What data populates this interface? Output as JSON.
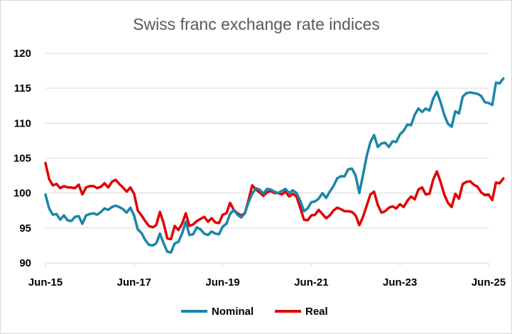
{
  "chart_data": {
    "type": "line",
    "title": "Swiss franc exchange rate indices",
    "xlabel": "",
    "ylabel": "",
    "ylim": [
      90,
      120
    ],
    "yticks": [
      "90",
      "95",
      "100",
      "105",
      "110",
      "115",
      "120"
    ],
    "xticks": [
      "Jun-15",
      "Jun-17",
      "Jun-19",
      "Jun-21",
      "Jun-23",
      "Jun-25"
    ],
    "x_start": "2015-06",
    "x_end": "2025-06",
    "grid": "horizontal",
    "legend": "bottom",
    "series": [
      {
        "name": "Nominal",
        "color": "#1a86a8",
        "values": [
          99.8,
          97.8,
          96.9,
          97.0,
          96.2,
          96.8,
          96.1,
          96.0,
          96.6,
          96.7,
          95.6,
          96.8,
          97.0,
          97.1,
          96.9,
          97.3,
          97.8,
          97.6,
          98.0,
          98.2,
          98.0,
          97.7,
          97.2,
          97.9,
          96.8,
          94.8,
          94.3,
          93.3,
          92.6,
          92.5,
          92.8,
          94.2,
          92.8,
          91.6,
          91.5,
          92.8,
          93.0,
          94.2,
          95.9,
          94.0,
          94.1,
          95.1,
          94.8,
          94.2,
          94.0,
          94.5,
          94.2,
          94.1,
          95.2,
          95.6,
          97.0,
          97.6,
          96.9,
          96.5,
          97.1,
          98.7,
          99.9,
          100.7,
          100.5,
          99.9,
          100.6,
          100.5,
          100.2,
          100.0,
          100.3,
          100.6,
          100.0,
          100.4,
          100.0,
          98.9,
          97.4,
          97.8,
          98.7,
          98.8,
          99.2,
          100.0,
          99.3,
          100.2,
          101.0,
          102.1,
          102.4,
          102.4,
          103.4,
          103.5,
          102.5,
          100.0,
          102.6,
          105.3,
          107.3,
          108.3,
          106.6,
          107.1,
          107.2,
          106.6,
          107.4,
          107.3,
          108.4,
          108.9,
          109.8,
          109.7,
          111.2,
          112.1,
          111.6,
          112.1,
          111.8,
          113.5,
          114.5,
          113.0,
          111.2,
          109.9,
          109.5,
          111.7,
          111.4,
          113.8,
          114.3,
          114.4,
          114.3,
          114.2,
          113.9,
          113.0,
          112.9,
          112.6,
          115.8,
          115.7,
          116.4
        ]
      },
      {
        "name": "Real",
        "color": "#e00000",
        "values": [
          104.3,
          102.0,
          101.1,
          101.3,
          100.7,
          101.0,
          100.8,
          100.8,
          100.7,
          101.2,
          99.8,
          100.8,
          101.0,
          101.0,
          100.7,
          100.9,
          101.4,
          100.8,
          101.6,
          101.9,
          101.3,
          100.8,
          100.2,
          100.8,
          99.9,
          97.5,
          96.8,
          96.0,
          95.3,
          95.1,
          95.4,
          97.3,
          95.7,
          93.5,
          93.4,
          95.3,
          94.7,
          95.6,
          97.1,
          95.3,
          95.5,
          96.0,
          96.3,
          96.6,
          95.9,
          96.4,
          95.8,
          95.7,
          96.9,
          97.1,
          98.6,
          97.6,
          97.1,
          96.8,
          97.1,
          99.0,
          101.1,
          100.5,
          100.1,
          99.6,
          100.1,
          100.3,
          100.0,
          100.0,
          99.8,
          100.2,
          99.5,
          99.9,
          99.5,
          97.9,
          96.2,
          96.1,
          96.8,
          96.9,
          97.6,
          97.0,
          96.4,
          96.8,
          97.5,
          97.9,
          97.7,
          97.4,
          97.4,
          97.3,
          96.8,
          95.4,
          96.6,
          98.2,
          99.8,
          100.2,
          98.3,
          97.2,
          97.4,
          97.9,
          98.1,
          97.8,
          98.4,
          98.0,
          98.9,
          99.5,
          99.1,
          100.5,
          100.8,
          99.8,
          99.9,
          101.9,
          103.1,
          101.6,
          99.8,
          98.6,
          98.0,
          99.9,
          99.2,
          101.3,
          101.6,
          101.7,
          101.2,
          100.9,
          100.1,
          99.7,
          99.8,
          99.0,
          101.5,
          101.4,
          102.1
        ]
      }
    ]
  }
}
